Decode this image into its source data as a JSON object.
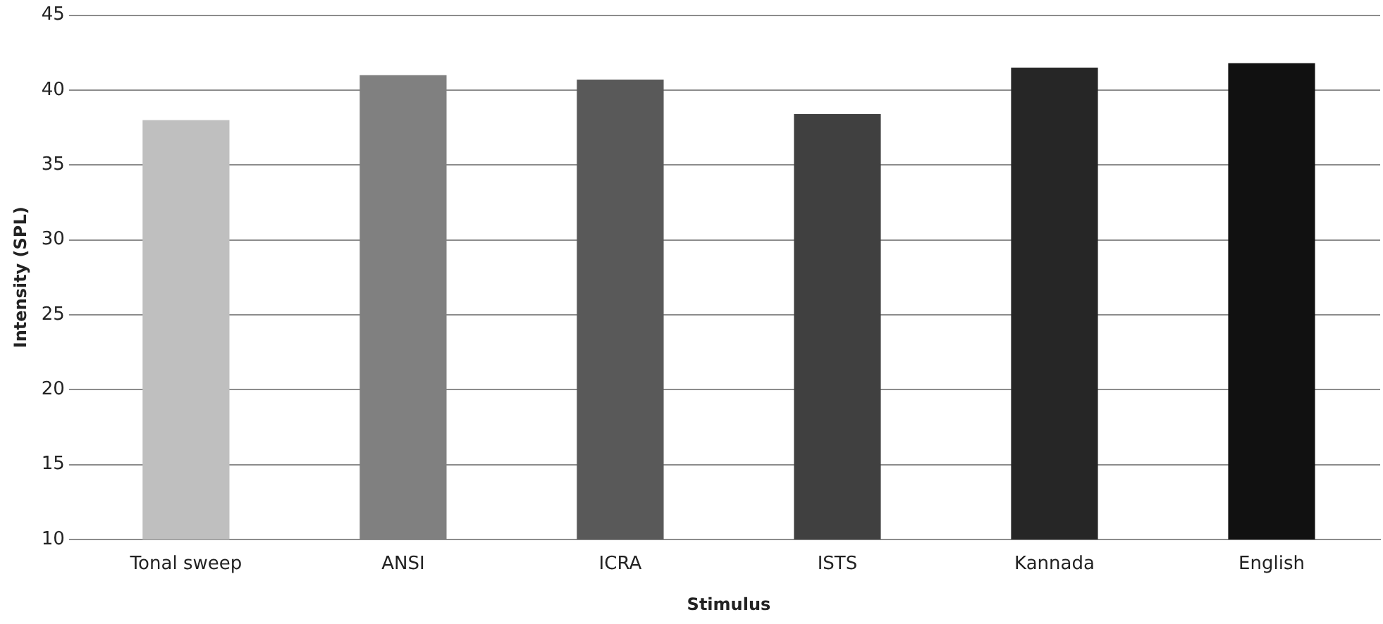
{
  "chart_data": {
    "type": "bar",
    "xlabel": "Stimulus",
    "ylabel": "Intensity (SPL)",
    "categories": [
      "Tonal sweep",
      "ANSI",
      "ICRA",
      "ISTS",
      "Kannada",
      "English"
    ],
    "values": [
      38.0,
      41.0,
      40.7,
      38.4,
      41.5,
      41.8
    ],
    "colors": [
      "#bfbfbf",
      "#808080",
      "#595959",
      "#404040",
      "#262626",
      "#111111"
    ],
    "ylim": [
      10,
      45
    ],
    "yticks": [
      10,
      15,
      20,
      25,
      30,
      35,
      40,
      45
    ],
    "grid": "y",
    "legend": false
  }
}
